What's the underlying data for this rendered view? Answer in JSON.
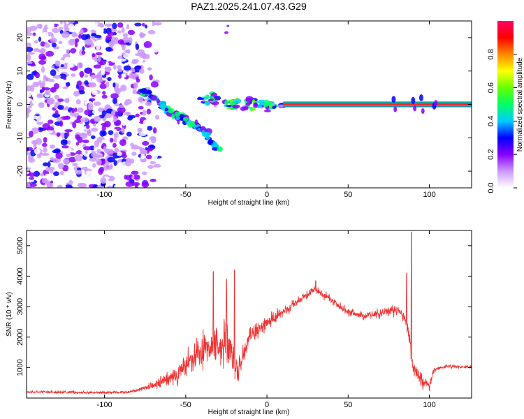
{
  "title": "PAZ1.2025.241.07.43.G29",
  "chart_data": [
    {
      "type": "heatmap",
      "name": "spectrogram",
      "xlabel": "Height of straight line (km)",
      "ylabel": "Frequency (Hz)",
      "xlim": [
        -148,
        126
      ],
      "ylim": [
        -25,
        25
      ],
      "xticks": [
        -100,
        -50,
        0,
        50,
        100
      ],
      "yticks": [
        -20,
        -10,
        0,
        10,
        20
      ],
      "colorbar": {
        "label": "Normalized spectral amplitude",
        "range": [
          0,
          1
        ],
        "ticks": [
          0.0,
          0.2,
          0.4,
          0.6,
          0.8
        ],
        "colors": [
          "#ffffff",
          "#cc99ff",
          "#8800ff",
          "#0000ff",
          "#00ccff",
          "#00ff66",
          "#66ff00",
          "#ffff00",
          "#ff8800",
          "#ff0000",
          "#ff0066"
        ]
      },
      "features": {
        "noise_region_x": [
          -148,
          -75
        ],
        "descending_branch": [
          [
            -78,
            4
          ],
          [
            -70,
            2
          ],
          [
            -60,
            -2
          ],
          [
            -50,
            -5
          ],
          [
            -40,
            -7
          ],
          [
            -30,
            -14
          ]
        ],
        "carrier_line": {
          "x_start": 10,
          "x_end": 126,
          "freq": 0
        }
      }
    },
    {
      "type": "line",
      "name": "snr",
      "xlabel": "Height of straight line (km)",
      "ylabel": "SNR (10 * v/v)",
      "xlim": [
        -148,
        126
      ],
      "ylim": [
        0,
        5500
      ],
      "xticks": [
        -100,
        -50,
        0,
        50,
        100
      ],
      "yticks": [
        1000,
        2000,
        3000,
        4000,
        5000
      ],
      "color": "#ee3333",
      "envelope": [
        [
          -148,
          200
        ],
        [
          -120,
          190
        ],
        [
          -100,
          180
        ],
        [
          -85,
          200
        ],
        [
          -75,
          320
        ],
        [
          -65,
          520
        ],
        [
          -55,
          800
        ],
        [
          -45,
          1300
        ],
        [
          -35,
          1700
        ],
        [
          -25,
          1800
        ],
        [
          -18,
          800
        ],
        [
          -10,
          2100
        ],
        [
          0,
          2500
        ],
        [
          10,
          2800
        ],
        [
          20,
          3200
        ],
        [
          30,
          3600
        ],
        [
          40,
          3200
        ],
        [
          50,
          2800
        ],
        [
          60,
          2700
        ],
        [
          70,
          2800
        ],
        [
          80,
          2900
        ],
        [
          85,
          2600
        ],
        [
          88,
          1800
        ],
        [
          90,
          1000
        ],
        [
          95,
          600
        ],
        [
          100,
          400
        ],
        [
          103,
          950
        ],
        [
          110,
          1030
        ],
        [
          126,
          1020
        ]
      ],
      "spikes": [
        [
          -33,
          4150
        ],
        [
          -20,
          4200
        ],
        [
          -25,
          3900
        ],
        [
          30,
          3850
        ],
        [
          89,
          5450
        ],
        [
          86,
          4100
        ]
      ],
      "noise_amplitude": [
        [
          -148,
          60
        ],
        [
          -80,
          60
        ],
        [
          -70,
          180
        ],
        [
          -55,
          500
        ],
        [
          -40,
          800
        ],
        [
          -25,
          1000
        ],
        [
          -18,
          600
        ],
        [
          -5,
          400
        ],
        [
          20,
          200
        ],
        [
          60,
          200
        ],
        [
          85,
          300
        ],
        [
          92,
          500
        ],
        [
          100,
          300
        ],
        [
          105,
          80
        ],
        [
          126,
          80
        ]
      ]
    }
  ]
}
